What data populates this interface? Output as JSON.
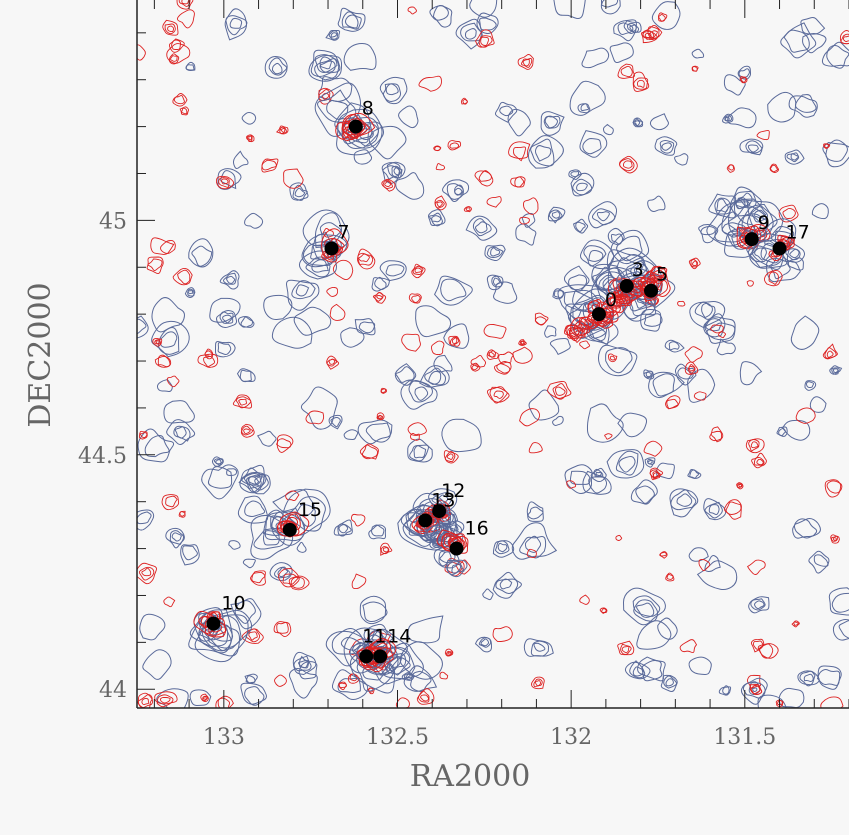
{
  "chart_data": {
    "type": "scatter",
    "title": "",
    "xlabel": "RA2000",
    "ylabel": "DEC2000",
    "xlim": [
      133.25,
      131.2
    ],
    "ylim": [
      43.96,
      45.47
    ],
    "x_ticks": [
      133,
      132.5,
      132,
      131.5
    ],
    "y_ticks": [
      44,
      44.5,
      45
    ],
    "x_tick_labels": [
      "133",
      "132.5",
      "132",
      "131.5"
    ],
    "y_tick_labels": [
      "44",
      "44.5",
      "45"
    ],
    "grid": false,
    "legend": "none",
    "colors": {
      "background": "#f7f7f7",
      "frame": "#222222",
      "contour_blue": "#5a6a9a",
      "contour_red": "#dd2222",
      "marker": "#000000"
    },
    "series": [
      {
        "points": [
          {
            "label": "0",
            "ra": 131.92,
            "dec": 44.8
          },
          {
            "label": "3",
            "ra": 131.84,
            "dec": 44.86
          },
          {
            "label": "5",
            "ra": 131.77,
            "dec": 44.85
          },
          {
            "label": "7",
            "ra": 132.69,
            "dec": 44.94
          },
          {
            "label": "8",
            "ra": 132.62,
            "dec": 45.2
          },
          {
            "label": "9",
            "ra": 131.48,
            "dec": 44.96
          },
          {
            "label": "10",
            "ra": 133.03,
            "dec": 44.14
          },
          {
            "label": "11",
            "ra": 132.59,
            "dec": 44.07
          },
          {
            "label": "14",
            "ra": 132.55,
            "dec": 44.07
          },
          {
            "label": "12",
            "ra": 132.38,
            "dec": 44.38
          },
          {
            "label": "13",
            "ra": 132.42,
            "dec": 44.36
          },
          {
            "label": "15",
            "ra": 132.81,
            "dec": 44.34
          },
          {
            "label": "16",
            "ra": 132.33,
            "dec": 44.3
          },
          {
            "label": "17",
            "ra": 131.4,
            "dec": 44.94
          }
        ]
      }
    ]
  }
}
